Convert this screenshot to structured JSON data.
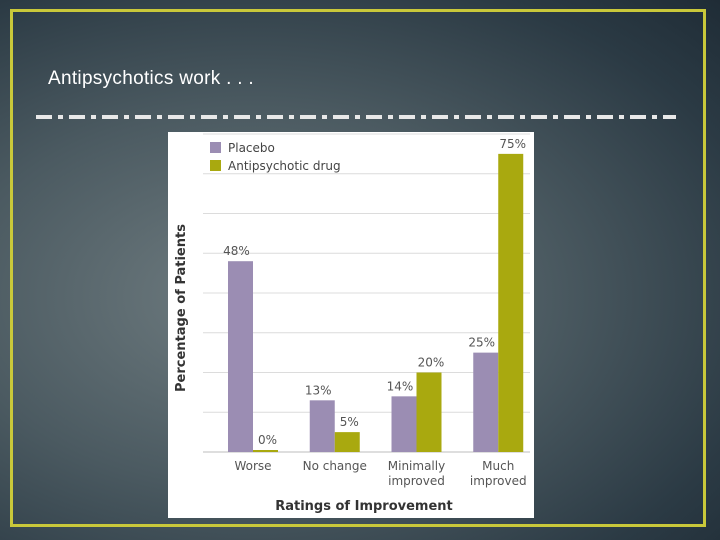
{
  "slide": {
    "title": "Antipsychotics work . . ."
  },
  "colors": {
    "frame": "#c9c83a",
    "placebo": "#9b8db3",
    "drug": "#a9a90f"
  },
  "chart_data": {
    "type": "bar",
    "categories": [
      [
        "Worse"
      ],
      [
        "No change"
      ],
      [
        "Minimally",
        "improved"
      ],
      [
        "Much",
        "improved"
      ]
    ],
    "series": [
      {
        "name": "Placebo",
        "values": [
          48,
          13,
          14,
          25
        ],
        "labels": [
          "48%",
          "13%",
          "14%",
          "25%"
        ],
        "color": "#9b8db3"
      },
      {
        "name": "Antipsychotic drug",
        "values": [
          0,
          5,
          20,
          75
        ],
        "labels": [
          "0%",
          "5%",
          "20%",
          "75%"
        ],
        "color": "#a9a90f"
      }
    ],
    "xlabel": "Ratings of Improvement",
    "ylabel": "Percentage of Patients",
    "ylim": [
      0,
      80
    ],
    "grid": true,
    "legend": "top-left"
  }
}
